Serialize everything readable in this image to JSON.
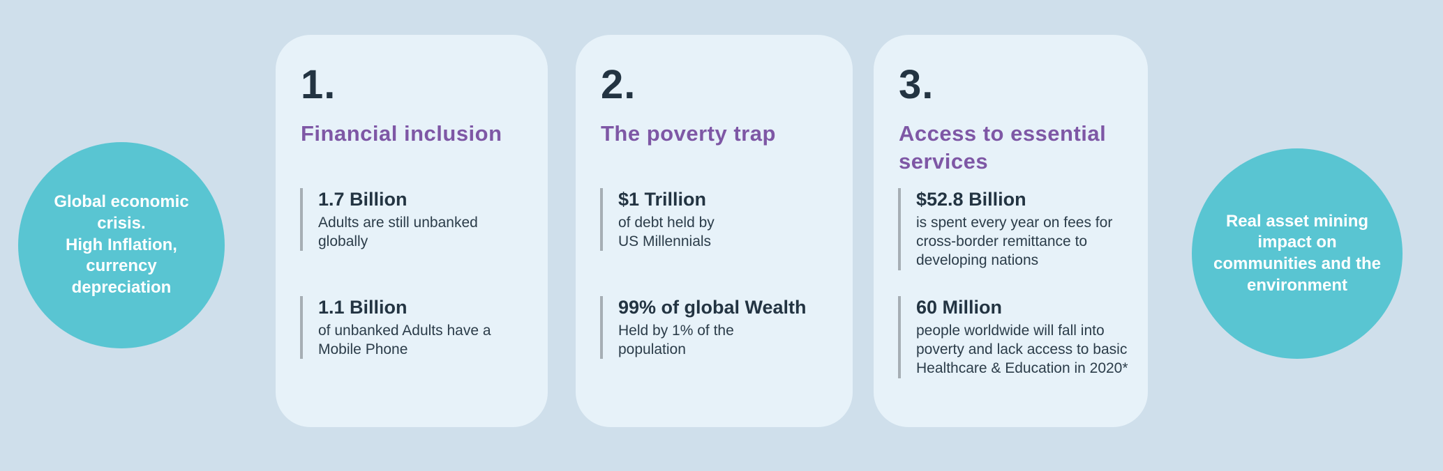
{
  "colors": {
    "background": "#cfdfeb",
    "card_background": "#e7f2f9",
    "circle_teal": "#59c5d2",
    "heading_purple": "#7e57a5",
    "text_dark": "#233442",
    "stat_bar_gray": "#a6aeb4",
    "circle_text_white": "#ffffff"
  },
  "left_circle": {
    "text": "Global economic\ncrisis.\nHigh Inflation,\ncurrency\ndepreciation"
  },
  "right_circle": {
    "text": "Real asset  mining\nimpact on\ncommunities and the\nenvironment"
  },
  "cards": [
    {
      "number": "1.",
      "title": "Financial inclusion",
      "stats": [
        {
          "value": "1.7 Billion",
          "desc": "Adults are still unbanked\nglobally"
        },
        {
          "value": "1.1 Billion",
          "desc": "of unbanked Adults have a\nMobile Phone"
        }
      ]
    },
    {
      "number": "2.",
      "title": "The poverty trap",
      "stats": [
        {
          "value": "$1 Trillion",
          "desc": "of debt held by\nUS Millennials"
        },
        {
          "value": "99% of global Wealth",
          "desc": "Held by 1% of the\npopulation"
        }
      ]
    },
    {
      "number": "3.",
      "title": "Access to essential services",
      "stats": [
        {
          "value": "$52.8 Billion",
          "desc": "is spent every year on fees for\ncross-border remittance to\ndeveloping nations"
        },
        {
          "value": "60 Million",
          "desc": "people worldwide will fall into\npoverty and lack access to basic\nHealthcare & Education in 2020*"
        }
      ]
    }
  ]
}
